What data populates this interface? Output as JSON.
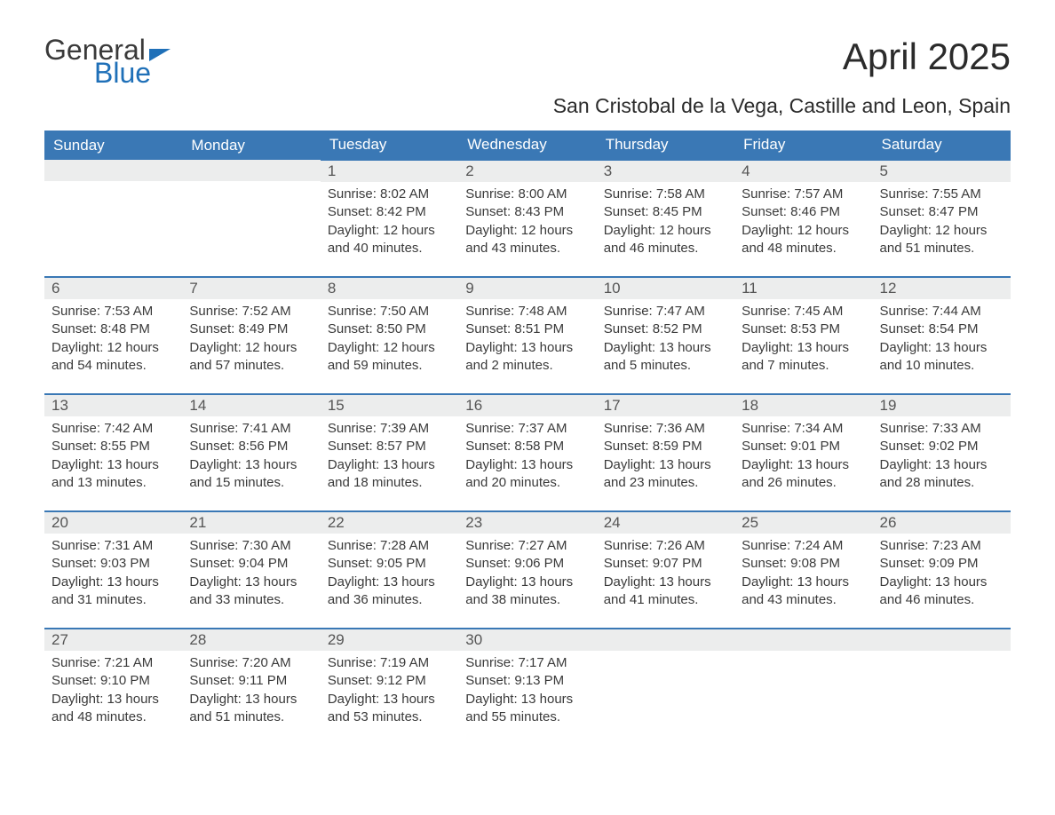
{
  "brand": {
    "word1": "General",
    "word2": "Blue"
  },
  "title": "April 2025",
  "subtitle": "San Cristobal de la Vega, Castille and Leon, Spain",
  "colors": {
    "header_bg": "#3a78b5",
    "header_text": "#ffffff",
    "row_accent": "#3a78b5",
    "daynum_bg": "#eceded",
    "text": "#3a3a3a",
    "brand_blue": "#1f70b8",
    "page_bg": "#ffffff"
  },
  "typography": {
    "title_fontsize": 42,
    "subtitle_fontsize": 23,
    "dayheader_fontsize": 17,
    "daynum_fontsize": 17,
    "body_fontsize": 15
  },
  "layout": {
    "columns": 7,
    "rows": 5,
    "col_width_pct": 14.28
  },
  "headers": [
    "Sunday",
    "Monday",
    "Tuesday",
    "Wednesday",
    "Thursday",
    "Friday",
    "Saturday"
  ],
  "weeks": [
    [
      null,
      null,
      {
        "num": "1",
        "sunrise": "8:02 AM",
        "sunset": "8:42 PM",
        "dl1": "Daylight: 12 hours",
        "dl2": "and 40 minutes."
      },
      {
        "num": "2",
        "sunrise": "8:00 AM",
        "sunset": "8:43 PM",
        "dl1": "Daylight: 12 hours",
        "dl2": "and 43 minutes."
      },
      {
        "num": "3",
        "sunrise": "7:58 AM",
        "sunset": "8:45 PM",
        "dl1": "Daylight: 12 hours",
        "dl2": "and 46 minutes."
      },
      {
        "num": "4",
        "sunrise": "7:57 AM",
        "sunset": "8:46 PM",
        "dl1": "Daylight: 12 hours",
        "dl2": "and 48 minutes."
      },
      {
        "num": "5",
        "sunrise": "7:55 AM",
        "sunset": "8:47 PM",
        "dl1": "Daylight: 12 hours",
        "dl2": "and 51 minutes."
      }
    ],
    [
      {
        "num": "6",
        "sunrise": "7:53 AM",
        "sunset": "8:48 PM",
        "dl1": "Daylight: 12 hours",
        "dl2": "and 54 minutes."
      },
      {
        "num": "7",
        "sunrise": "7:52 AM",
        "sunset": "8:49 PM",
        "dl1": "Daylight: 12 hours",
        "dl2": "and 57 minutes."
      },
      {
        "num": "8",
        "sunrise": "7:50 AM",
        "sunset": "8:50 PM",
        "dl1": "Daylight: 12 hours",
        "dl2": "and 59 minutes."
      },
      {
        "num": "9",
        "sunrise": "7:48 AM",
        "sunset": "8:51 PM",
        "dl1": "Daylight: 13 hours",
        "dl2": "and 2 minutes."
      },
      {
        "num": "10",
        "sunrise": "7:47 AM",
        "sunset": "8:52 PM",
        "dl1": "Daylight: 13 hours",
        "dl2": "and 5 minutes."
      },
      {
        "num": "11",
        "sunrise": "7:45 AM",
        "sunset": "8:53 PM",
        "dl1": "Daylight: 13 hours",
        "dl2": "and 7 minutes."
      },
      {
        "num": "12",
        "sunrise": "7:44 AM",
        "sunset": "8:54 PM",
        "dl1": "Daylight: 13 hours",
        "dl2": "and 10 minutes."
      }
    ],
    [
      {
        "num": "13",
        "sunrise": "7:42 AM",
        "sunset": "8:55 PM",
        "dl1": "Daylight: 13 hours",
        "dl2": "and 13 minutes."
      },
      {
        "num": "14",
        "sunrise": "7:41 AM",
        "sunset": "8:56 PM",
        "dl1": "Daylight: 13 hours",
        "dl2": "and 15 minutes."
      },
      {
        "num": "15",
        "sunrise": "7:39 AM",
        "sunset": "8:57 PM",
        "dl1": "Daylight: 13 hours",
        "dl2": "and 18 minutes."
      },
      {
        "num": "16",
        "sunrise": "7:37 AM",
        "sunset": "8:58 PM",
        "dl1": "Daylight: 13 hours",
        "dl2": "and 20 minutes."
      },
      {
        "num": "17",
        "sunrise": "7:36 AM",
        "sunset": "8:59 PM",
        "dl1": "Daylight: 13 hours",
        "dl2": "and 23 minutes."
      },
      {
        "num": "18",
        "sunrise": "7:34 AM",
        "sunset": "9:01 PM",
        "dl1": "Daylight: 13 hours",
        "dl2": "and 26 minutes."
      },
      {
        "num": "19",
        "sunrise": "7:33 AM",
        "sunset": "9:02 PM",
        "dl1": "Daylight: 13 hours",
        "dl2": "and 28 minutes."
      }
    ],
    [
      {
        "num": "20",
        "sunrise": "7:31 AM",
        "sunset": "9:03 PM",
        "dl1": "Daylight: 13 hours",
        "dl2": "and 31 minutes."
      },
      {
        "num": "21",
        "sunrise": "7:30 AM",
        "sunset": "9:04 PM",
        "dl1": "Daylight: 13 hours",
        "dl2": "and 33 minutes."
      },
      {
        "num": "22",
        "sunrise": "7:28 AM",
        "sunset": "9:05 PM",
        "dl1": "Daylight: 13 hours",
        "dl2": "and 36 minutes."
      },
      {
        "num": "23",
        "sunrise": "7:27 AM",
        "sunset": "9:06 PM",
        "dl1": "Daylight: 13 hours",
        "dl2": "and 38 minutes."
      },
      {
        "num": "24",
        "sunrise": "7:26 AM",
        "sunset": "9:07 PM",
        "dl1": "Daylight: 13 hours",
        "dl2": "and 41 minutes."
      },
      {
        "num": "25",
        "sunrise": "7:24 AM",
        "sunset": "9:08 PM",
        "dl1": "Daylight: 13 hours",
        "dl2": "and 43 minutes."
      },
      {
        "num": "26",
        "sunrise": "7:23 AM",
        "sunset": "9:09 PM",
        "dl1": "Daylight: 13 hours",
        "dl2": "and 46 minutes."
      }
    ],
    [
      {
        "num": "27",
        "sunrise": "7:21 AM",
        "sunset": "9:10 PM",
        "dl1": "Daylight: 13 hours",
        "dl2": "and 48 minutes."
      },
      {
        "num": "28",
        "sunrise": "7:20 AM",
        "sunset": "9:11 PM",
        "dl1": "Daylight: 13 hours",
        "dl2": "and 51 minutes."
      },
      {
        "num": "29",
        "sunrise": "7:19 AM",
        "sunset": "9:12 PM",
        "dl1": "Daylight: 13 hours",
        "dl2": "and 53 minutes."
      },
      {
        "num": "30",
        "sunrise": "7:17 AM",
        "sunset": "9:13 PM",
        "dl1": "Daylight: 13 hours",
        "dl2": "and 55 minutes."
      },
      null,
      null,
      null
    ]
  ],
  "labels": {
    "sunrise_prefix": "Sunrise: ",
    "sunset_prefix": "Sunset: "
  }
}
